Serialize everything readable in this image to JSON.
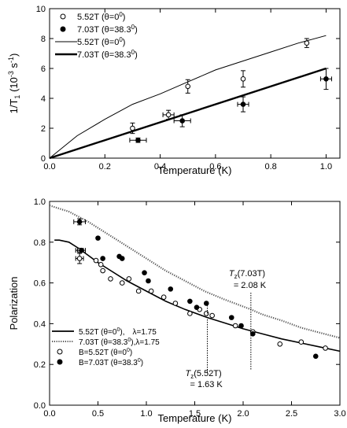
{
  "chart_data": [
    {
      "type": "scatter",
      "xlabel": "Temperature (K)",
      "ylabel_main": "1/T",
      "ylabel_sub": "1",
      "ylabel_units": " (10",
      "ylabel_exp": "-3",
      "ylabel_tail": " s",
      "ylabel_exp2": "-1",
      "ylabel_close": ")",
      "xlim": [
        0,
        1.05
      ],
      "ylim": [
        0,
        10
      ],
      "x_ticks": [
        "0.0",
        "0.2",
        "0.4",
        "0.6",
        "0.8",
        "1.0"
      ],
      "x_tick_values": [
        0,
        0.2,
        0.4,
        0.6,
        0.8,
        1.0
      ],
      "y_ticks": [
        "0",
        "2",
        "4",
        "6",
        "8",
        "10"
      ],
      "y_tick_values": [
        0,
        2,
        4,
        6,
        8,
        10
      ],
      "legend": [
        {
          "label": "5.52T (θ=0",
          "sup": "0",
          "close": ")",
          "marker": "open-circle"
        },
        {
          "label": "7.03T (θ=38.3",
          "sup": "0",
          "close": ")",
          "marker": "filled-circle"
        },
        {
          "label": "5.52T (θ=0",
          "sup": "0",
          "close": ")",
          "marker": "thin-line"
        },
        {
          "label": "7.03T (θ=38.3",
          "sup": "0",
          "close": ")",
          "marker": "thick-line"
        }
      ],
      "series": [
        {
          "name": "5.52T (θ=0°)",
          "kind": "points",
          "marker": "open",
          "points": [
            {
              "x": 0.3,
              "y": 2.0,
              "yerr": 0.35,
              "xerr": 0
            },
            {
              "x": 0.43,
              "y": 2.9,
              "yerr": 0.3,
              "xerr": 0.02
            },
            {
              "x": 0.5,
              "y": 4.8,
              "yerr": 0.45,
              "xerr": 0
            },
            {
              "x": 0.7,
              "y": 5.3,
              "yerr": 0.55,
              "xerr": 0
            },
            {
              "x": 0.93,
              "y": 7.7,
              "yerr": 0.3,
              "xerr": 0
            }
          ]
        },
        {
          "name": "7.03T (θ=38.3°)",
          "kind": "points",
          "marker": "filled",
          "points": [
            {
              "x": 0.32,
              "y": 1.2,
              "yerr": 0.15,
              "xerr": 0.03
            },
            {
              "x": 0.48,
              "y": 2.5,
              "yerr": 0.4,
              "xerr": 0.03
            },
            {
              "x": 0.7,
              "y": 3.6,
              "yerr": 0.5,
              "xerr": 0.02
            },
            {
              "x": 1.0,
              "y": 5.3,
              "yerr": 0.7,
              "xerr": 0.02
            }
          ]
        },
        {
          "name": "5.52T (θ=0°)",
          "kind": "line",
          "width": 1,
          "x": [
            0,
            0.1,
            0.2,
            0.3,
            0.4,
            0.5,
            0.6,
            0.7,
            0.8,
            0.9,
            1.0
          ],
          "y": [
            0,
            1.5,
            2.6,
            3.6,
            4.3,
            5.1,
            5.9,
            6.5,
            7.1,
            7.7,
            8.2
          ]
        },
        {
          "name": "7.03T (θ=38.3°)",
          "kind": "line",
          "width": 2.4,
          "x": [
            0,
            1.0
          ],
          "y": [
            0,
            6.0
          ]
        }
      ]
    },
    {
      "type": "scatter",
      "xlabel": "Temperature (K)",
      "ylabel": "Polarization",
      "xlim": [
        0,
        3.0
      ],
      "ylim": [
        0,
        1.0
      ],
      "x_ticks": [
        "0.0",
        "0.5",
        "1.0",
        "1.5",
        "2.0",
        "2.5",
        "3.0"
      ],
      "x_tick_values": [
        0,
        0.5,
        1.0,
        1.5,
        2.0,
        2.5,
        3.0
      ],
      "y_ticks": [
        "0.0",
        "0.2",
        "0.4",
        "0.6",
        "0.8",
        "1.0"
      ],
      "y_tick_values": [
        0,
        0.2,
        0.4,
        0.6,
        0.8,
        1.0
      ],
      "legend": [
        {
          "label": "5.52T (θ=0",
          "sup": "0",
          "close": "),",
          "lambda": "λ=1.75",
          "marker": "solid-line"
        },
        {
          "label": "7.03T (θ=38.3",
          "sup": "0",
          "close": "),λ=1.75",
          "lambda": "",
          "marker": "dotted-line"
        },
        {
          "label": "B=5.52T (θ=0",
          "sup": "0",
          "close": ")",
          "lambda": "",
          "marker": "open-circle"
        },
        {
          "label": "B=7.03T (θ=38.3",
          "sup": "0",
          "close": ")",
          "lambda": "",
          "marker": "filled-circle"
        }
      ],
      "annotations": [
        {
          "prefix": "T",
          "sub": "z",
          "rest": "(7.03T)",
          "value": "= 2.08 K",
          "x": 2.08
        },
        {
          "prefix": "T",
          "sub": "z",
          "rest": "(5.52T)",
          "value": "= 1.63 K",
          "x": 1.63
        }
      ],
      "series": [
        {
          "name": "5.52T (θ=0°), λ=1.75",
          "kind": "line",
          "style": "solid",
          "x": [
            0.05,
            0.1,
            0.2,
            0.3,
            0.4,
            0.5,
            0.6,
            0.8,
            1.0,
            1.2,
            1.4,
            1.63,
            1.8,
            2.0,
            2.2,
            2.4,
            2.6,
            2.8,
            3.0
          ],
          "y": [
            0.81,
            0.81,
            0.8,
            0.77,
            0.735,
            0.7,
            0.67,
            0.61,
            0.56,
            0.51,
            0.47,
            0.43,
            0.405,
            0.375,
            0.35,
            0.325,
            0.305,
            0.285,
            0.265
          ]
        },
        {
          "name": "7.03T (θ=38.3°), λ=1.75",
          "kind": "line",
          "style": "dotted",
          "x": [
            0,
            0.2,
            0.4,
            0.6,
            0.8,
            1.0,
            1.2,
            1.4,
            1.6,
            1.8,
            2.08,
            2.2,
            2.4,
            2.6,
            2.8,
            3.0
          ],
          "y": [
            0.98,
            0.95,
            0.9,
            0.84,
            0.78,
            0.72,
            0.66,
            0.61,
            0.56,
            0.52,
            0.47,
            0.445,
            0.415,
            0.38,
            0.355,
            0.33
          ]
        },
        {
          "name": "B=5.52T (θ=0°)",
          "kind": "points",
          "marker": "open",
          "points": [
            {
              "x": 0.31,
              "y": 0.72,
              "yerr": 0.025,
              "xerr": 0.04
            },
            {
              "x": 0.31,
              "y": 0.76,
              "yerr": 0,
              "xerr": 0.04
            },
            {
              "x": 0.48,
              "y": 0.71
            },
            {
              "x": 0.53,
              "y": 0.69
            },
            {
              "x": 0.55,
              "y": 0.66
            },
            {
              "x": 0.63,
              "y": 0.62
            },
            {
              "x": 0.75,
              "y": 0.6
            },
            {
              "x": 0.82,
              "y": 0.62
            },
            {
              "x": 0.92,
              "y": 0.56
            },
            {
              "x": 1.05,
              "y": 0.56
            },
            {
              "x": 1.18,
              "y": 0.53
            },
            {
              "x": 1.3,
              "y": 0.5
            },
            {
              "x": 1.45,
              "y": 0.45
            },
            {
              "x": 1.55,
              "y": 0.47
            },
            {
              "x": 1.62,
              "y": 0.45
            },
            {
              "x": 1.68,
              "y": 0.44
            },
            {
              "x": 1.92,
              "y": 0.39
            },
            {
              "x": 2.1,
              "y": 0.36
            },
            {
              "x": 2.38,
              "y": 0.3
            },
            {
              "x": 2.6,
              "y": 0.31
            },
            {
              "x": 2.85,
              "y": 0.28
            }
          ]
        },
        {
          "name": "B=7.03T (θ=38.3°)",
          "kind": "points",
          "marker": "filled",
          "points": [
            {
              "x": 0.31,
              "y": 0.9,
              "yerr": 0.015,
              "xerr": 0.06
            },
            {
              "x": 0.33,
              "y": 0.76,
              "yerr": 0,
              "xerr": 0.04
            },
            {
              "x": 0.5,
              "y": 0.82
            },
            {
              "x": 0.55,
              "y": 0.72
            },
            {
              "x": 0.72,
              "y": 0.73
            },
            {
              "x": 0.75,
              "y": 0.72
            },
            {
              "x": 0.98,
              "y": 0.65
            },
            {
              "x": 1.02,
              "y": 0.61
            },
            {
              "x": 1.25,
              "y": 0.57
            },
            {
              "x": 1.45,
              "y": 0.51
            },
            {
              "x": 1.52,
              "y": 0.48
            },
            {
              "x": 1.62,
              "y": 0.5
            },
            {
              "x": 1.88,
              "y": 0.43
            },
            {
              "x": 1.98,
              "y": 0.39
            },
            {
              "x": 2.1,
              "y": 0.35
            },
            {
              "x": 2.75,
              "y": 0.24
            }
          ]
        }
      ]
    }
  ]
}
